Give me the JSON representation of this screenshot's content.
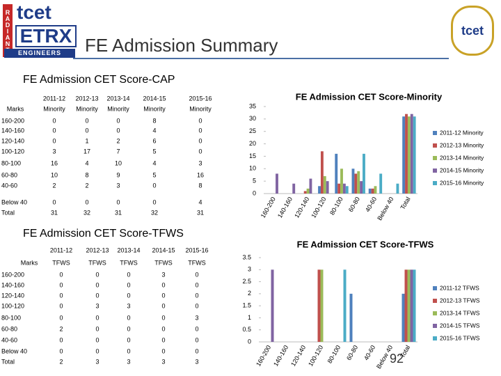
{
  "logo": {
    "side": "RADIANT",
    "top": "tcet",
    "main": "ETRX",
    "bottom": "ENGINEERS"
  },
  "right_logo": "tcet",
  "title": "FE Admission Summary",
  "sections": [
    {
      "heading": "FE Admission CET Score-CAP",
      "table": {
        "row_header": "Marks",
        "columns": [
          {
            "year": "2011-12",
            "kind": "Minority"
          },
          {
            "year": "2012-13",
            "kind": "Minority"
          },
          {
            "year": "2013-14",
            "kind": "Minority"
          },
          {
            "year": "2014-15",
            "kind": "Minority"
          },
          {
            "year": "2015-16",
            "kind": "Minority"
          }
        ],
        "rows": [
          {
            "label": "160-200",
            "values": [
              0,
              0,
              0,
              8,
              0
            ]
          },
          {
            "label": "140-160",
            "values": [
              0,
              0,
              0,
              4,
              0
            ]
          },
          {
            "label": "120-140",
            "values": [
              0,
              1,
              2,
              6,
              0
            ]
          },
          {
            "label": "100-120",
            "values": [
              3,
              17,
              7,
              5,
              0
            ]
          },
          {
            "label": "80-100",
            "values": [
              16,
              4,
              10,
              4,
              3
            ]
          },
          {
            "label": "60-80",
            "values": [
              10,
              8,
              9,
              5,
              16
            ]
          },
          {
            "label": "40-60",
            "values": [
              2,
              2,
              3,
              0,
              8
            ]
          },
          {
            "label": "Below 40",
            "values": [
              0,
              0,
              0,
              0,
              4
            ]
          },
          {
            "label": "Total",
            "values": [
              31,
              32,
              31,
              32,
              31
            ]
          }
        ]
      }
    },
    {
      "heading": "FE Admission CET Score-TFWS",
      "table": {
        "row_header": "Marks",
        "columns": [
          {
            "year": "2011-12",
            "kind": "TFWS"
          },
          {
            "year": "2012-13",
            "kind": "TFWS"
          },
          {
            "year": "2013-14",
            "kind": "TFWS"
          },
          {
            "year": "2014-15",
            "kind": "TFWS"
          },
          {
            "year": "2015-16",
            "kind": "TFWS"
          }
        ],
        "rows": [
          {
            "label": "160-200",
            "values": [
              0,
              0,
              0,
              3,
              0
            ]
          },
          {
            "label": "140-160",
            "values": [
              0,
              0,
              0,
              0,
              0
            ]
          },
          {
            "label": "120-140",
            "values": [
              0,
              0,
              0,
              0,
              0
            ]
          },
          {
            "label": "100-120",
            "values": [
              0,
              3,
              3,
              0,
              0
            ]
          },
          {
            "label": "80-100",
            "values": [
              0,
              0,
              0,
              0,
              3
            ]
          },
          {
            "label": "60-80",
            "values": [
              2,
              0,
              0,
              0,
              0
            ]
          },
          {
            "label": "40-60",
            "values": [
              0,
              0,
              0,
              0,
              0
            ]
          },
          {
            "label": "Below 40",
            "values": [
              0,
              0,
              0,
              0,
              0
            ]
          },
          {
            "label": "Total",
            "values": [
              2,
              3,
              3,
              3,
              3
            ]
          }
        ]
      }
    }
  ],
  "chart_data": [
    {
      "type": "bar",
      "title": "FE Admission CET Score-Minority",
      "categories": [
        "160-200",
        "140-160",
        "120-140",
        "100-120",
        "80-100",
        "60-80",
        "40-60",
        "Below 40",
        "Total"
      ],
      "series": [
        {
          "name": "2011-12 Minority",
          "color": "#4f81bd",
          "values": [
            0,
            0,
            0,
            3,
            16,
            10,
            2,
            0,
            31
          ]
        },
        {
          "name": "2012-13 Minority",
          "color": "#c0504d",
          "values": [
            0,
            0,
            1,
            17,
            4,
            8,
            2,
            0,
            32
          ]
        },
        {
          "name": "2013-14 Minority",
          "color": "#9bbb59",
          "values": [
            0,
            0,
            2,
            7,
            10,
            9,
            3,
            0,
            31
          ]
        },
        {
          "name": "2014-15 Minority",
          "color": "#8064a2",
          "values": [
            8,
            4,
            6,
            5,
            4,
            5,
            0,
            0,
            32
          ]
        },
        {
          "name": "2015-16 Minority",
          "color": "#4bacc6",
          "values": [
            0,
            0,
            0,
            0,
            3,
            16,
            8,
            4,
            31
          ]
        }
      ],
      "ylim": [
        0,
        35
      ],
      "yticks": [
        0,
        5,
        10,
        15,
        20,
        25,
        30,
        35
      ],
      "grid": false,
      "legend": "right"
    },
    {
      "type": "bar",
      "title": "FE Admission CET Score-TFWS",
      "categories": [
        "160-200",
        "140-160",
        "120-140",
        "100-120",
        "80-100",
        "60-80",
        "40-60",
        "Below 40",
        "Total"
      ],
      "series": [
        {
          "name": "2011-12 TFWS",
          "color": "#4f81bd",
          "values": [
            0,
            0,
            0,
            0,
            0,
            2,
            0,
            0,
            2
          ]
        },
        {
          "name": "2012-13 TFWS",
          "color": "#c0504d",
          "values": [
            0,
            0,
            0,
            3,
            0,
            0,
            0,
            0,
            3
          ]
        },
        {
          "name": "2013-14 TFWS",
          "color": "#9bbb59",
          "values": [
            0,
            0,
            0,
            3,
            0,
            0,
            0,
            0,
            3
          ]
        },
        {
          "name": "2014-15 TFWS",
          "color": "#8064a2",
          "values": [
            3,
            0,
            0,
            0,
            0,
            0,
            0,
            0,
            3
          ]
        },
        {
          "name": "2015-16 TFWS",
          "color": "#4bacc6",
          "values": [
            0,
            0,
            0,
            0,
            3,
            0,
            0,
            0,
            3
          ]
        }
      ],
      "ylim": [
        0,
        3.5
      ],
      "yticks": [
        0,
        0.5,
        1,
        1.5,
        2,
        2.5,
        3,
        3.5
      ],
      "grid": false,
      "legend": "right"
    }
  ],
  "page_number": "92"
}
